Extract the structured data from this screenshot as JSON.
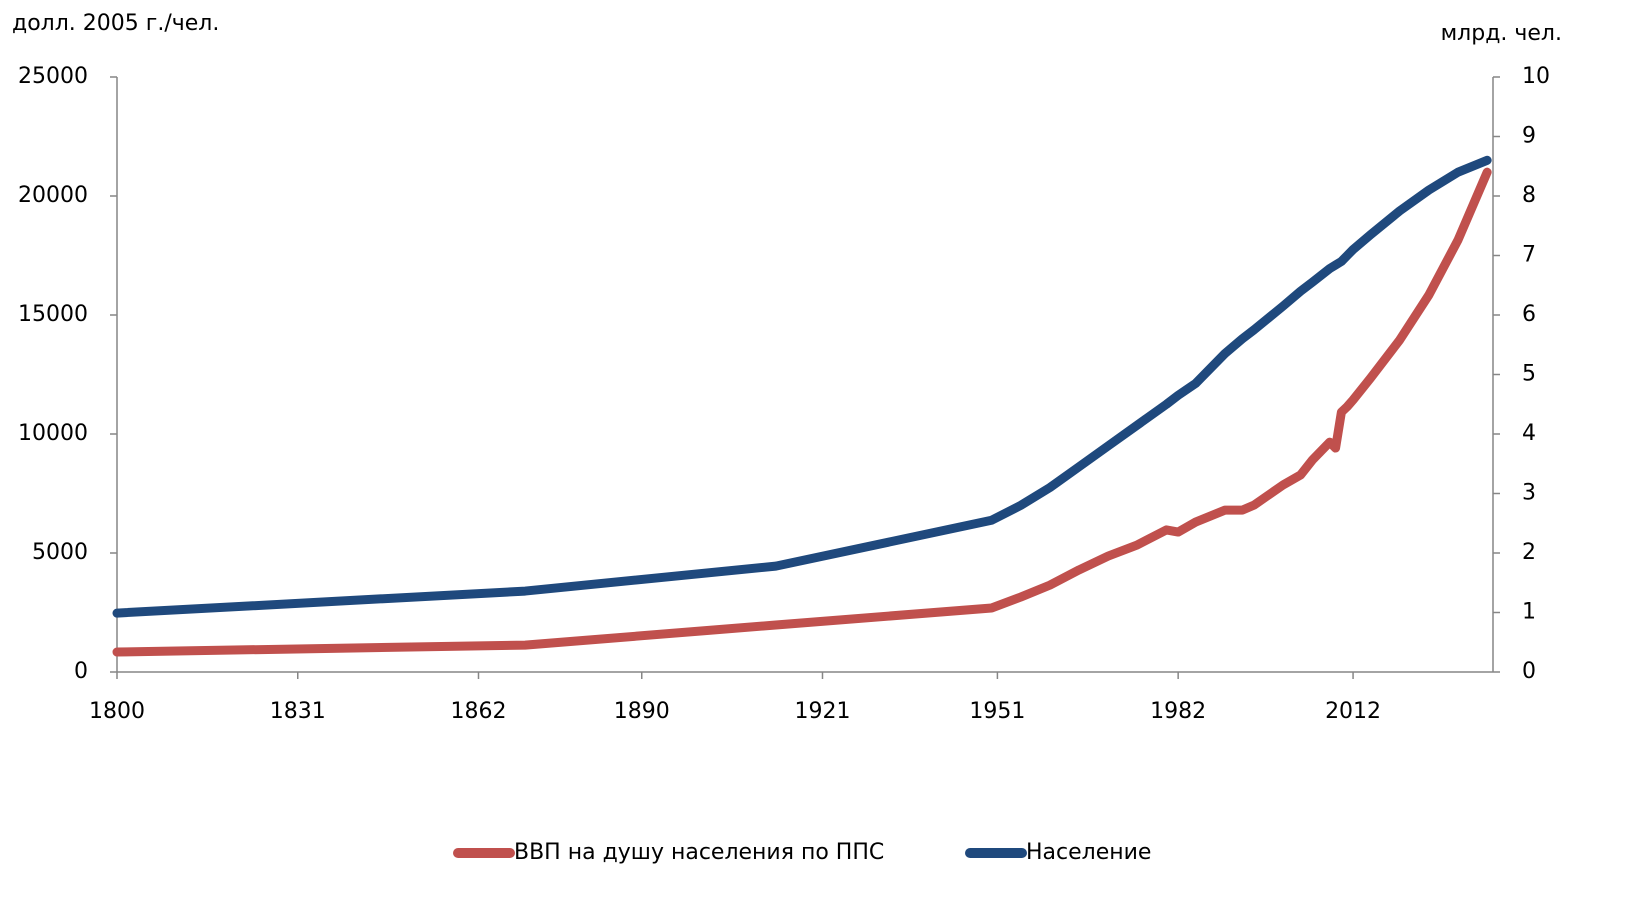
{
  "chart_data": {
    "type": "line",
    "y_label": "долл. 2005 г./чел.",
    "y2_label": "млрд. чел.",
    "x": [
      1800,
      1870,
      1913,
      1950,
      1955,
      1960,
      1965,
      1970,
      1975,
      1980,
      1982,
      1985,
      1990,
      1993,
      1995,
      2000,
      2003,
      2005,
      2008,
      2009,
      2010,
      2011,
      2012,
      2015,
      2020,
      2025,
      2030,
      2035
    ],
    "xlim": [
      1800,
      2036
    ],
    "xticks": [
      1800,
      1831,
      1862,
      1890,
      1921,
      1951,
      1982,
      2012
    ],
    "ylim": [
      0,
      25000
    ],
    "yticks": [
      0,
      5000,
      10000,
      15000,
      20000,
      25000
    ],
    "y2lim": [
      0,
      10
    ],
    "y2ticks": [
      0,
      1,
      2,
      3,
      4,
      5,
      6,
      7,
      8,
      9,
      10
    ],
    "series": [
      {
        "name": "ВВП на душу населения по ППС",
        "color": "#c0504d",
        "values": [
          840,
          1130,
          1975,
          2690,
          3150,
          3650,
          4290,
          4870,
          5340,
          5970,
          5880,
          6300,
          6800,
          6800,
          7010,
          7860,
          8280,
          8900,
          9660,
          9410,
          10920,
          11150,
          11430,
          12350,
          13950,
          15840,
          18150,
          21000
        ]
      },
      {
        "name": "Население",
        "color": "#1f497d",
        "axis": "y2",
        "values": [
          0.99,
          1.36,
          1.78,
          2.55,
          2.8,
          3.1,
          3.45,
          3.8,
          4.15,
          4.5,
          4.65,
          4.85,
          5.35,
          5.6,
          5.75,
          6.15,
          6.4,
          6.55,
          6.78,
          6.84,
          6.9,
          7.0,
          7.1,
          7.35,
          7.75,
          8.1,
          8.4,
          8.6
        ]
      }
    ],
    "legend": "bottom"
  }
}
